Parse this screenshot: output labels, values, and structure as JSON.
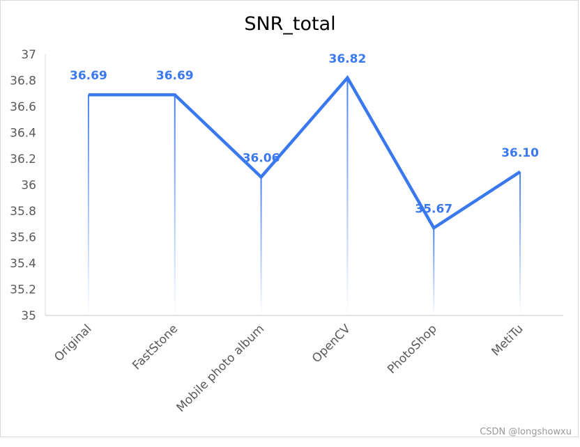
{
  "chart_data": {
    "type": "line",
    "title": "SNR_total",
    "categories": [
      "Original",
      "FastStone",
      "Mobile photo album",
      "OpenCV",
      "PhotoShop",
      "MetiTu"
    ],
    "series": [
      {
        "values": [
          36.69,
          36.69,
          36.06,
          36.82,
          35.67,
          36.1
        ]
      }
    ],
    "data_labels": [
      "36.69",
      "36.69",
      "36.06",
      "36.82",
      "35.67",
      "36.10"
    ],
    "ylim": [
      35,
      37
    ],
    "yticks": [
      "35",
      "35.2",
      "35.4",
      "35.6",
      "35.8",
      "36",
      "36.2",
      "36.4",
      "36.6",
      "36.8",
      "37"
    ],
    "xlabel": "",
    "ylabel": "",
    "grid": false,
    "drop_lines": true,
    "colors": {
      "series": "#3a78f0",
      "axis": "#d9d9d9",
      "tick_text": "#595959"
    }
  },
  "watermark": "CSDN @longshowxu"
}
